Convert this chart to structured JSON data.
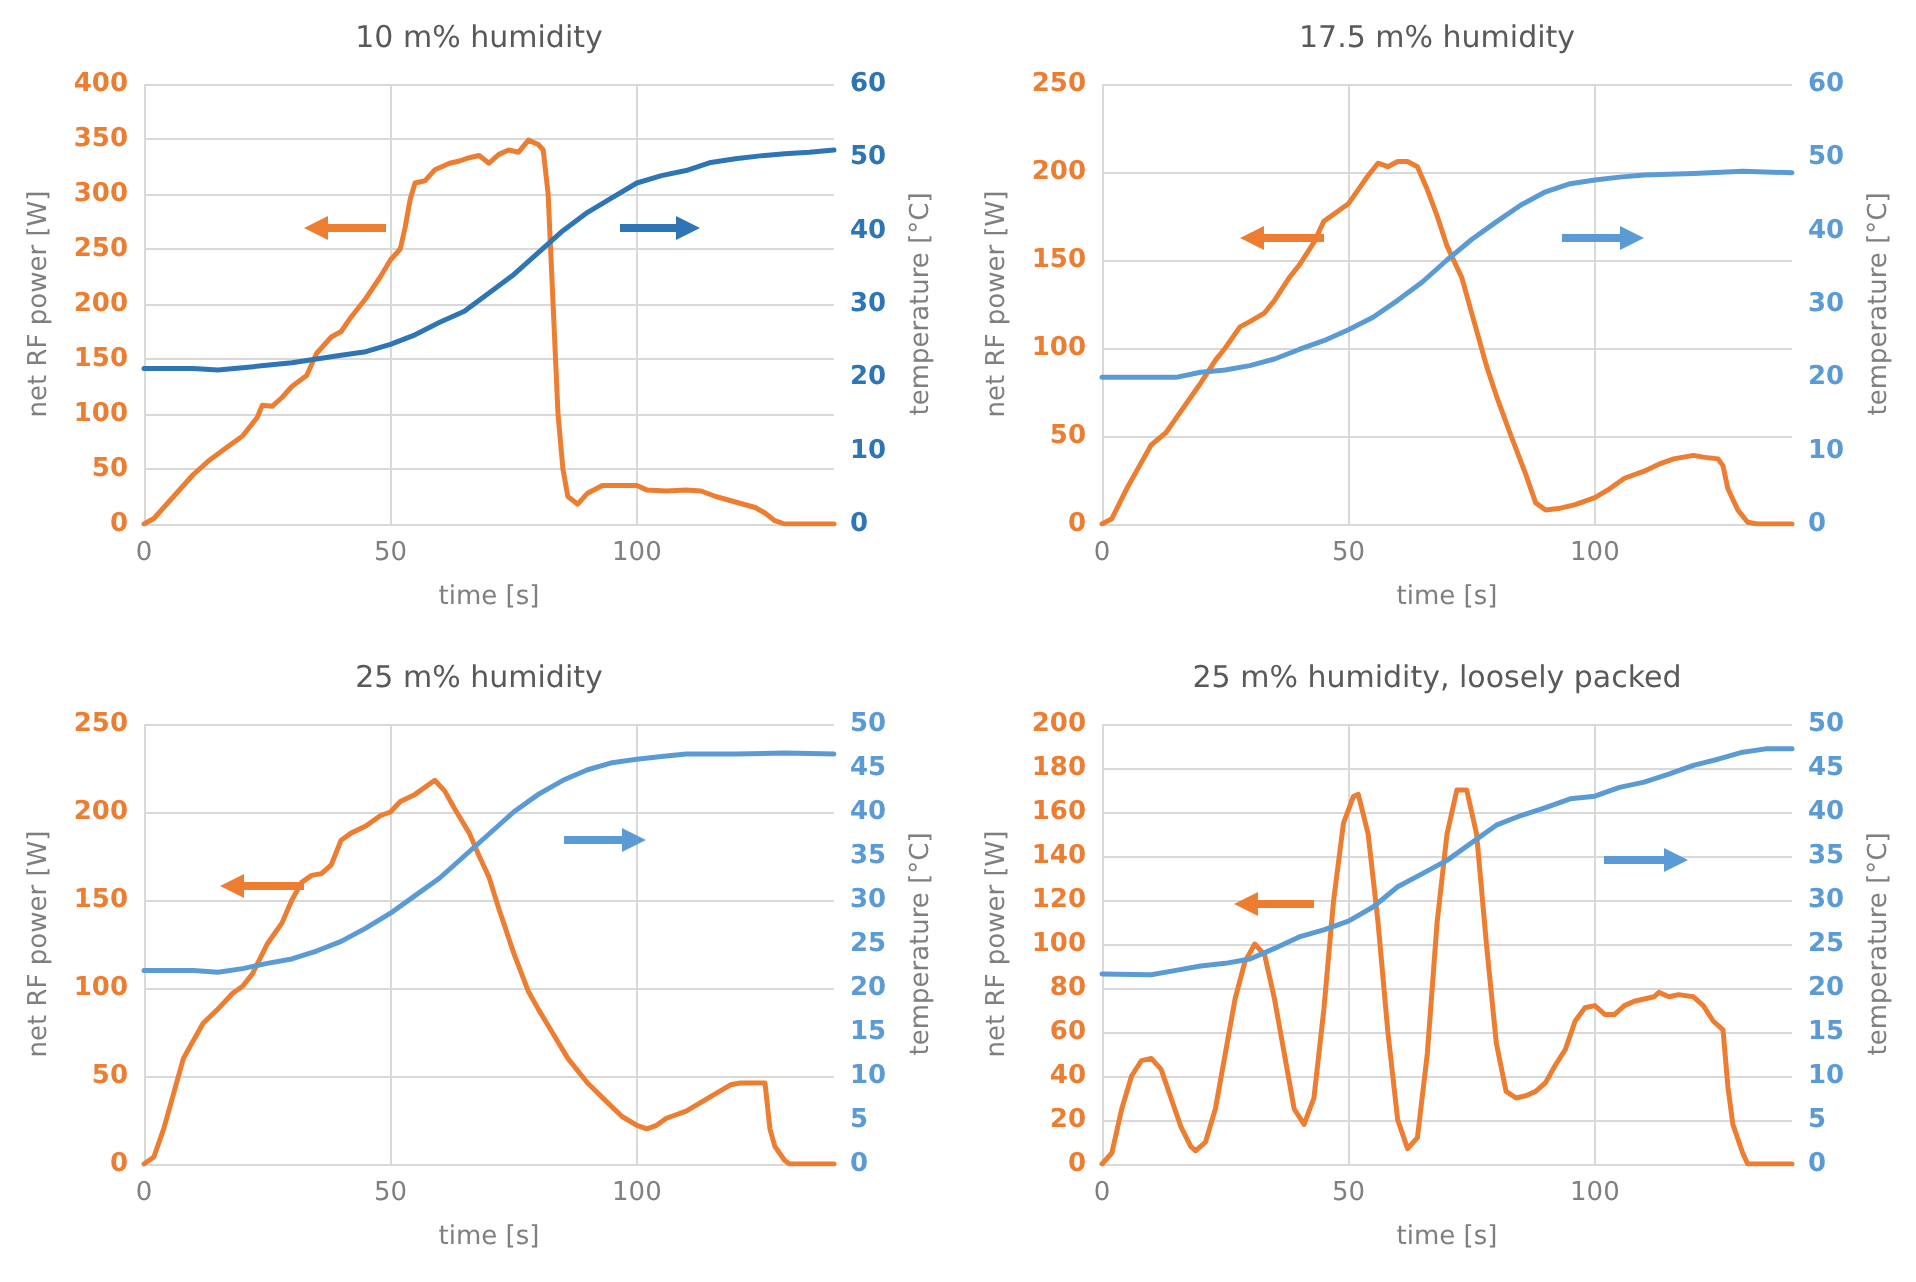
{
  "chart_data": [
    {
      "type": "line",
      "title": "10 m% humidity",
      "xlabel": "time [s]",
      "ylabel": "net RF power [W]",
      "y2label": "temperature [°C]",
      "xlim": [
        0,
        140
      ],
      "xticks": [
        0,
        50,
        100
      ],
      "ylim": [
        0,
        400
      ],
      "yticks": [
        0,
        50,
        100,
        150,
        200,
        250,
        300,
        350,
        400
      ],
      "y2lim": [
        0,
        60
      ],
      "y2ticks": [
        0,
        10,
        20,
        30,
        40,
        50,
        60
      ],
      "grid": true,
      "marker": "none",
      "series": [
        {
          "color": "#ed7d31",
          "x": [
            0,
            2,
            5,
            8,
            10,
            13,
            16,
            20,
            23,
            24,
            26,
            28,
            30,
            33,
            35,
            38,
            40,
            42,
            45,
            48,
            50,
            52,
            53,
            54,
            55,
            57,
            59,
            62,
            64,
            66,
            68,
            70,
            72,
            74,
            76,
            78,
            80,
            81,
            82,
            83,
            84,
            85,
            86,
            88,
            90,
            93,
            97,
            100,
            102,
            106,
            110,
            113,
            116,
            120,
            124,
            126,
            128,
            130,
            140
          ],
          "values": [
            0,
            5,
            20,
            35,
            45,
            57,
            67,
            80,
            97,
            108,
            107,
            115,
            125,
            135,
            155,
            170,
            175,
            188,
            205,
            225,
            240,
            250,
            270,
            295,
            310,
            312,
            322,
            328,
            330,
            333,
            335,
            328,
            336,
            340,
            338,
            349,
            345,
            340,
            300,
            200,
            100,
            50,
            25,
            18,
            28,
            35,
            35,
            35,
            31,
            30,
            31,
            30,
            25,
            20,
            15,
            10,
            3,
            0,
            0
          ]
        },
        {
          "color": "#2e75b6",
          "axis": "y2",
          "x": [
            0,
            10,
            15,
            20,
            30,
            40,
            45,
            50,
            55,
            60,
            65,
            70,
            75,
            80,
            85,
            90,
            95,
            100,
            105,
            110,
            115,
            120,
            125,
            130,
            135,
            140
          ],
          "values": [
            21.2,
            21.2,
            21,
            21.3,
            22,
            23,
            23.5,
            24.5,
            25.8,
            27.5,
            29,
            31.5,
            34,
            37,
            40,
            42.5,
            44.5,
            46.5,
            47.5,
            48.2,
            49.3,
            49.8,
            50.2,
            50.5,
            50.7,
            51
          ]
        }
      ]
    },
    {
      "type": "line",
      "title": "17.5 m% humidity",
      "xlabel": "time [s]",
      "ylabel": "net RF power [W]",
      "y2label": "temperature [°C]",
      "xlim": [
        0,
        140
      ],
      "xticks": [
        0,
        50,
        100
      ],
      "ylim": [
        0,
        250
      ],
      "yticks": [
        0,
        50,
        100,
        150,
        200,
        250
      ],
      "y2lim": [
        0,
        60
      ],
      "y2ticks": [
        0,
        10,
        20,
        30,
        40,
        50,
        60
      ],
      "grid": true,
      "marker": "none",
      "series": [
        {
          "color": "#ed7d31",
          "x": [
            0,
            2,
            5,
            8,
            10,
            13,
            15,
            18,
            20,
            23,
            25,
            28,
            30,
            33,
            35,
            38,
            40,
            43,
            45,
            48,
            50,
            52,
            54,
            56,
            58,
            60,
            62,
            64,
            66,
            68,
            70,
            73,
            75,
            78,
            80,
            83,
            86,
            88,
            90,
            93,
            96,
            100,
            103,
            106,
            110,
            113,
            116,
            120,
            122,
            125,
            126,
            127,
            129,
            131,
            133,
            140
          ],
          "values": [
            0,
            3,
            20,
            35,
            45,
            52,
            60,
            72,
            80,
            93,
            100,
            112,
            115,
            120,
            127,
            140,
            147,
            160,
            172,
            178,
            182,
            190,
            198,
            205,
            203,
            206,
            206,
            203,
            190,
            175,
            158,
            140,
            120,
            90,
            73,
            50,
            28,
            12,
            8,
            9,
            11,
            15,
            20,
            26,
            30,
            34,
            37,
            39,
            38,
            37,
            33,
            20,
            8,
            1,
            0,
            0
          ]
        },
        {
          "color": "#5b9bd5",
          "axis": "y2",
          "x": [
            0,
            10,
            15,
            20,
            25,
            30,
            35,
            40,
            45,
            50,
            55,
            60,
            65,
            70,
            75,
            80,
            85,
            90,
            95,
            100,
            105,
            110,
            115,
            120,
            130,
            140
          ],
          "values": [
            20,
            20,
            20,
            20.7,
            21,
            21.6,
            22.5,
            23.8,
            25,
            26.5,
            28.2,
            30.5,
            33,
            36,
            38.8,
            41.2,
            43.5,
            45.3,
            46.4,
            46.9,
            47.3,
            47.6,
            47.7,
            47.8,
            48.1,
            47.9
          ]
        }
      ]
    },
    {
      "type": "line",
      "title": "25 m% humidity",
      "xlabel": "time [s]",
      "ylabel": "net RF power [W]",
      "y2label": "temperature [°C]",
      "xlim": [
        0,
        140
      ],
      "xticks": [
        0,
        50,
        100
      ],
      "ylim": [
        0,
        250
      ],
      "yticks": [
        0,
        50,
        100,
        150,
        200,
        250
      ],
      "y2lim": [
        0,
        50
      ],
      "y2ticks": [
        0,
        5,
        10,
        15,
        20,
        25,
        30,
        35,
        40,
        45,
        50
      ],
      "grid": true,
      "marker": "none",
      "series": [
        {
          "color": "#ed7d31",
          "x": [
            0,
            2,
            4,
            6,
            8,
            10,
            12,
            15,
            18,
            20,
            22,
            25,
            28,
            30,
            32,
            34,
            36,
            38,
            40,
            42,
            45,
            48,
            50,
            52,
            55,
            58,
            59,
            61,
            63,
            66,
            68,
            70,
            72,
            75,
            78,
            80,
            83,
            86,
            90,
            94,
            97,
            100,
            102,
            104,
            106,
            110,
            113,
            116,
            119,
            121,
            124,
            126,
            127,
            128,
            130,
            131,
            140
          ],
          "values": [
            0,
            4,
            20,
            40,
            60,
            70,
            80,
            88,
            97,
            101,
            108,
            125,
            137,
            150,
            160,
            164,
            165,
            170,
            184,
            188,
            192,
            198,
            200,
            206,
            210,
            216,
            218,
            212,
            202,
            188,
            175,
            163,
            145,
            120,
            98,
            88,
            74,
            60,
            46,
            35,
            27,
            22,
            20,
            22,
            26,
            30,
            35,
            40,
            45,
            46,
            46,
            46,
            20,
            10,
            2,
            0,
            0
          ]
        },
        {
          "color": "#5b9bd5",
          "axis": "y2",
          "x": [
            0,
            10,
            15,
            20,
            25,
            30,
            35,
            40,
            45,
            50,
            55,
            60,
            65,
            70,
            75,
            80,
            85,
            90,
            95,
            100,
            105,
            110,
            120,
            130,
            140
          ],
          "values": [
            22,
            22,
            21.8,
            22.2,
            22.8,
            23.3,
            24.2,
            25.3,
            26.8,
            28.5,
            30.5,
            32.5,
            35,
            37.5,
            40,
            42,
            43.6,
            44.8,
            45.6,
            46,
            46.3,
            46.6,
            46.6,
            46.7,
            46.6
          ]
        }
      ]
    },
    {
      "type": "line",
      "title": "25 m% humidity, loosely packed",
      "xlabel": "time [s]",
      "ylabel": "net RF power [W]",
      "y2label": "temperature [°C]",
      "xlim": [
        0,
        140
      ],
      "xticks": [
        0,
        50,
        100
      ],
      "ylim": [
        0,
        200
      ],
      "yticks": [
        0,
        20,
        40,
        60,
        80,
        100,
        120,
        140,
        160,
        180,
        200
      ],
      "y2lim": [
        0,
        50
      ],
      "y2ticks": [
        0,
        5,
        10,
        15,
        20,
        25,
        30,
        35,
        40,
        45,
        50
      ],
      "grid": true,
      "marker": "none",
      "series": [
        {
          "color": "#ed7d31",
          "x": [
            0,
            2,
            4,
            6,
            8,
            10,
            12,
            14,
            16,
            18,
            19,
            21,
            23,
            25,
            27,
            29,
            31,
            33,
            35,
            37,
            39,
            41,
            43,
            45,
            47,
            49,
            51,
            52,
            54,
            56,
            58,
            60,
            62,
            64,
            66,
            68,
            70,
            72,
            74,
            76,
            78,
            80,
            82,
            84,
            86,
            88,
            90,
            92,
            94,
            96,
            98,
            100,
            102,
            104,
            106,
            108,
            110,
            112,
            113,
            115,
            117,
            120,
            122,
            124,
            126,
            127,
            128,
            130,
            131,
            140
          ],
          "values": [
            0,
            5,
            25,
            40,
            47,
            48,
            43,
            30,
            17,
            8,
            6,
            10,
            25,
            50,
            75,
            92,
            100,
            95,
            75,
            50,
            25,
            18,
            30,
            70,
            120,
            155,
            167,
            168,
            150,
            110,
            60,
            20,
            7,
            12,
            50,
            110,
            150,
            170,
            170,
            150,
            100,
            55,
            33,
            30,
            31,
            33,
            37,
            45,
            52,
            65,
            71,
            72,
            68,
            68,
            72,
            74,
            75,
            76,
            78,
            76,
            77,
            76,
            72,
            65,
            61,
            35,
            18,
            5,
            0,
            0
          ]
        },
        {
          "color": "#5b9bd5",
          "axis": "y2",
          "x": [
            0,
            10,
            15,
            20,
            25,
            30,
            35,
            40,
            45,
            50,
            55,
            60,
            65,
            70,
            75,
            80,
            85,
            90,
            95,
            100,
            105,
            110,
            115,
            120,
            125,
            130,
            135,
            140
          ],
          "values": [
            21.6,
            21.5,
            22,
            22.5,
            22.8,
            23.3,
            24.5,
            25.8,
            26.6,
            27.6,
            29.2,
            31.5,
            33,
            34.5,
            36.5,
            38.5,
            39.6,
            40.5,
            41.5,
            41.8,
            42.8,
            43.4,
            44.3,
            45.3,
            46,
            46.8,
            47.2,
            47.2
          ]
        }
      ]
    }
  ]
}
